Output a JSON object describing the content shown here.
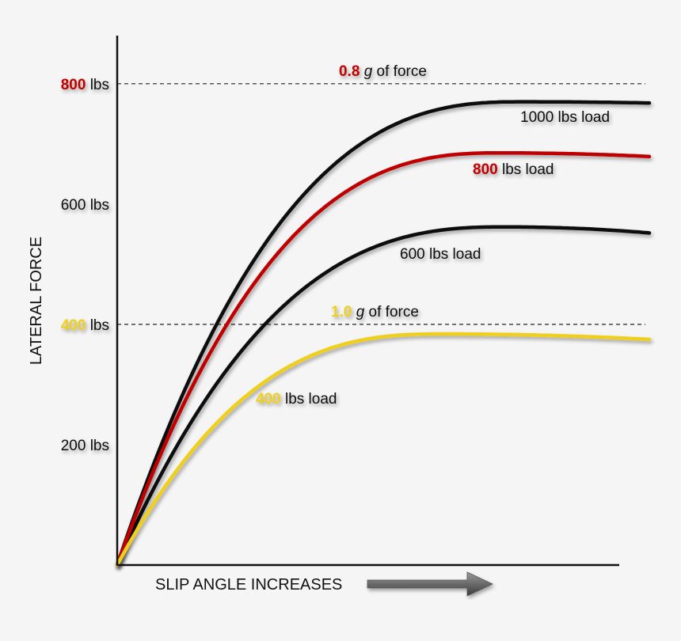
{
  "chart_data": {
    "type": "line",
    "xlabel": "SLIP ANGLE INCREASES",
    "ylabel": "LATERAL FORCE",
    "y_ticks": [
      {
        "value": 200,
        "num": "",
        "text": "200 lbs",
        "color": "#111111"
      },
      {
        "value": 400,
        "num": "400",
        "text": " lbs",
        "color": "#f0cf1a"
      },
      {
        "value": 600,
        "num": "",
        "text": "600 lbs",
        "color": "#111111"
      },
      {
        "value": 800,
        "num": "800",
        "text": " lbs",
        "color": "#c00000"
      }
    ],
    "reference_lines": [
      {
        "value": 800,
        "num": "0.8",
        "g": "g",
        "text": " of force",
        "color": "#c00000"
      },
      {
        "value": 400,
        "num": "1.0",
        "g": "g",
        "text": " of force",
        "color": "#f0cf1a"
      }
    ],
    "series": [
      {
        "num": "",
        "label": "1000 lbs load",
        "color": "#111111",
        "peak": 770,
        "peak_x": 0.76,
        "end": 768
      },
      {
        "num": "800",
        "label": " lbs load",
        "color": "#c00000",
        "peak": 685,
        "peak_x": 0.72,
        "end": 679
      },
      {
        "num": "",
        "label": "600 lbs load",
        "color": "#111111",
        "peak": 562,
        "peak_x": 0.73,
        "end": 552
      },
      {
        "num": "400",
        "label": " lbs load",
        "color": "#f0cf1a",
        "peak": 384,
        "peak_x": 0.61,
        "end": 375
      }
    ],
    "xlim": [
      0,
      1
    ],
    "ylim": [
      0,
      880
    ],
    "grid": false
  }
}
